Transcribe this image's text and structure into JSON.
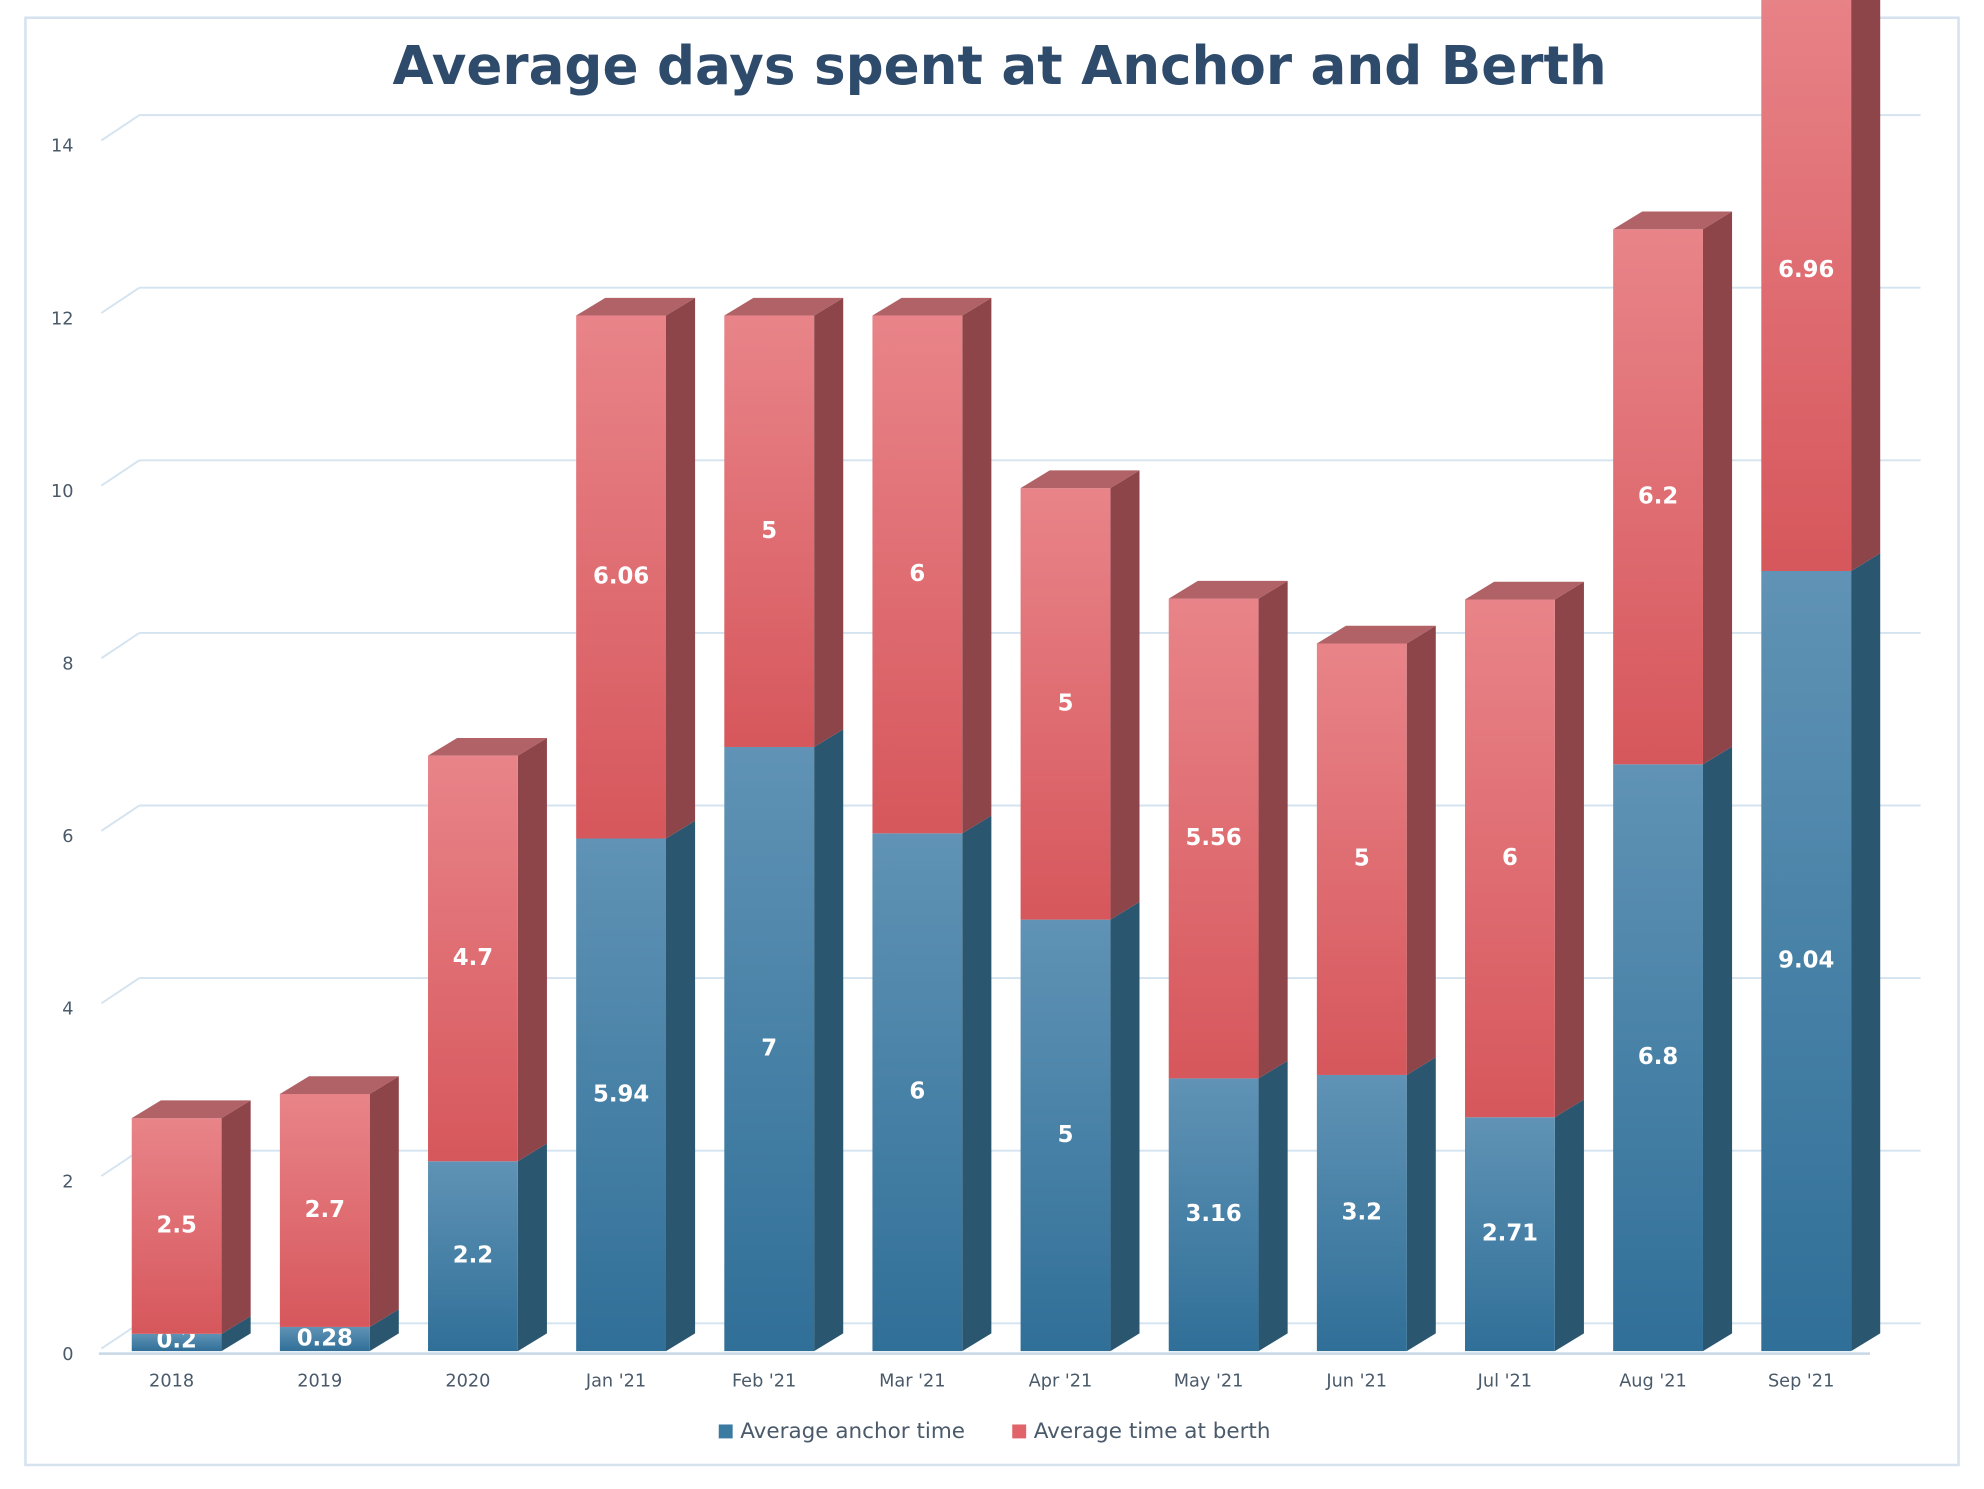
{
  "chart_data": {
    "type": "bar3d_stacked",
    "title": "Average days spent at Anchor and Berth",
    "categories": [
      "2018",
      "2019",
      "2020",
      "Jan '21",
      "Feb '21",
      "Mar '21",
      "Apr '21",
      "May '21",
      "Jun '21",
      "Jul '21",
      "Aug '21",
      "Sep '21"
    ],
    "series": [
      {
        "name": "Average anchor time",
        "color": "#3b7aa1",
        "values": [
          0.2,
          0.28,
          2.2,
          5.94,
          7,
          6,
          5,
          3.16,
          3.2,
          2.71,
          6.8,
          9.04
        ]
      },
      {
        "name": "Average time at berth",
        "color": "#e0646a",
        "values": [
          2.5,
          2.7,
          4.7,
          6.06,
          5,
          6,
          5,
          5.56,
          5,
          6,
          6.2,
          6.96
        ]
      }
    ],
    "ylim": [
      0,
      14
    ],
    "yticks": [
      0,
      2,
      4,
      6,
      8,
      10,
      12,
      14
    ],
    "grid": true,
    "legend": "bottom"
  }
}
